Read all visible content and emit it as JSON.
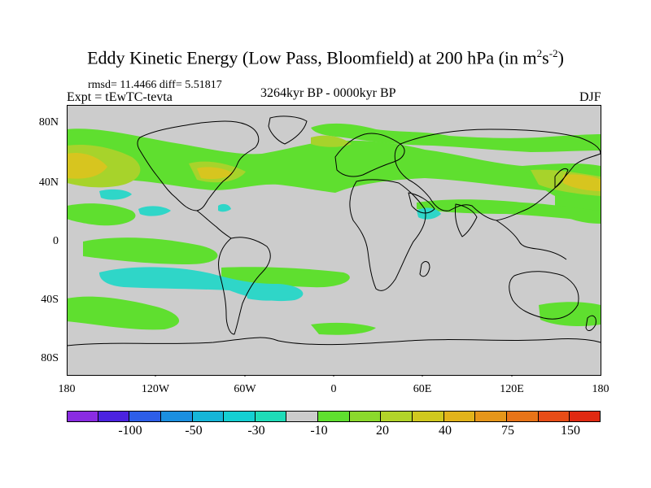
{
  "title": {
    "text": "Eddy Kinetic Energy (Low Pass, Bloomfield) at 200 hPa (in m",
    "sup1": "2",
    "mid": "s",
    "sup2": "-2",
    "end": ")"
  },
  "stats": "rmsd= 11.4466 diff= 5.51817",
  "expt": "Expt = tEwTC-tevta",
  "period": "3264kyr BP - 0000kyr BP",
  "season": "DJF",
  "colors": {
    "neutral": "#cccccc",
    "land_outline": "#000000",
    "pos1": "#5fdf2f",
    "pos2": "#a7d32b",
    "pos3": "#d7c51f",
    "neg1": "#2fd6c8",
    "neg2": "#19c2d6"
  },
  "axes": {
    "lat_labels": [
      "80N",
      "40N",
      "0",
      "40S",
      "80S"
    ],
    "lon_labels": [
      "180",
      "120W",
      "60W",
      "0",
      "60E",
      "120E",
      "180"
    ]
  },
  "colorbar": {
    "colors": [
      "#8a2be2",
      "#4b22e0",
      "#2d5ee8",
      "#1b8fe0",
      "#16b5d8",
      "#14cfd2",
      "#1fdcb8",
      "#cccccc",
      "#5fdf2f",
      "#8bd92c",
      "#b2d429",
      "#d0c81f",
      "#e2b31b",
      "#e6961a",
      "#e87418",
      "#e84d17",
      "#e02a12"
    ],
    "labels": [
      "-100",
      "-50",
      "-30",
      "-10",
      "20",
      "40",
      "75",
      "150"
    ]
  }
}
